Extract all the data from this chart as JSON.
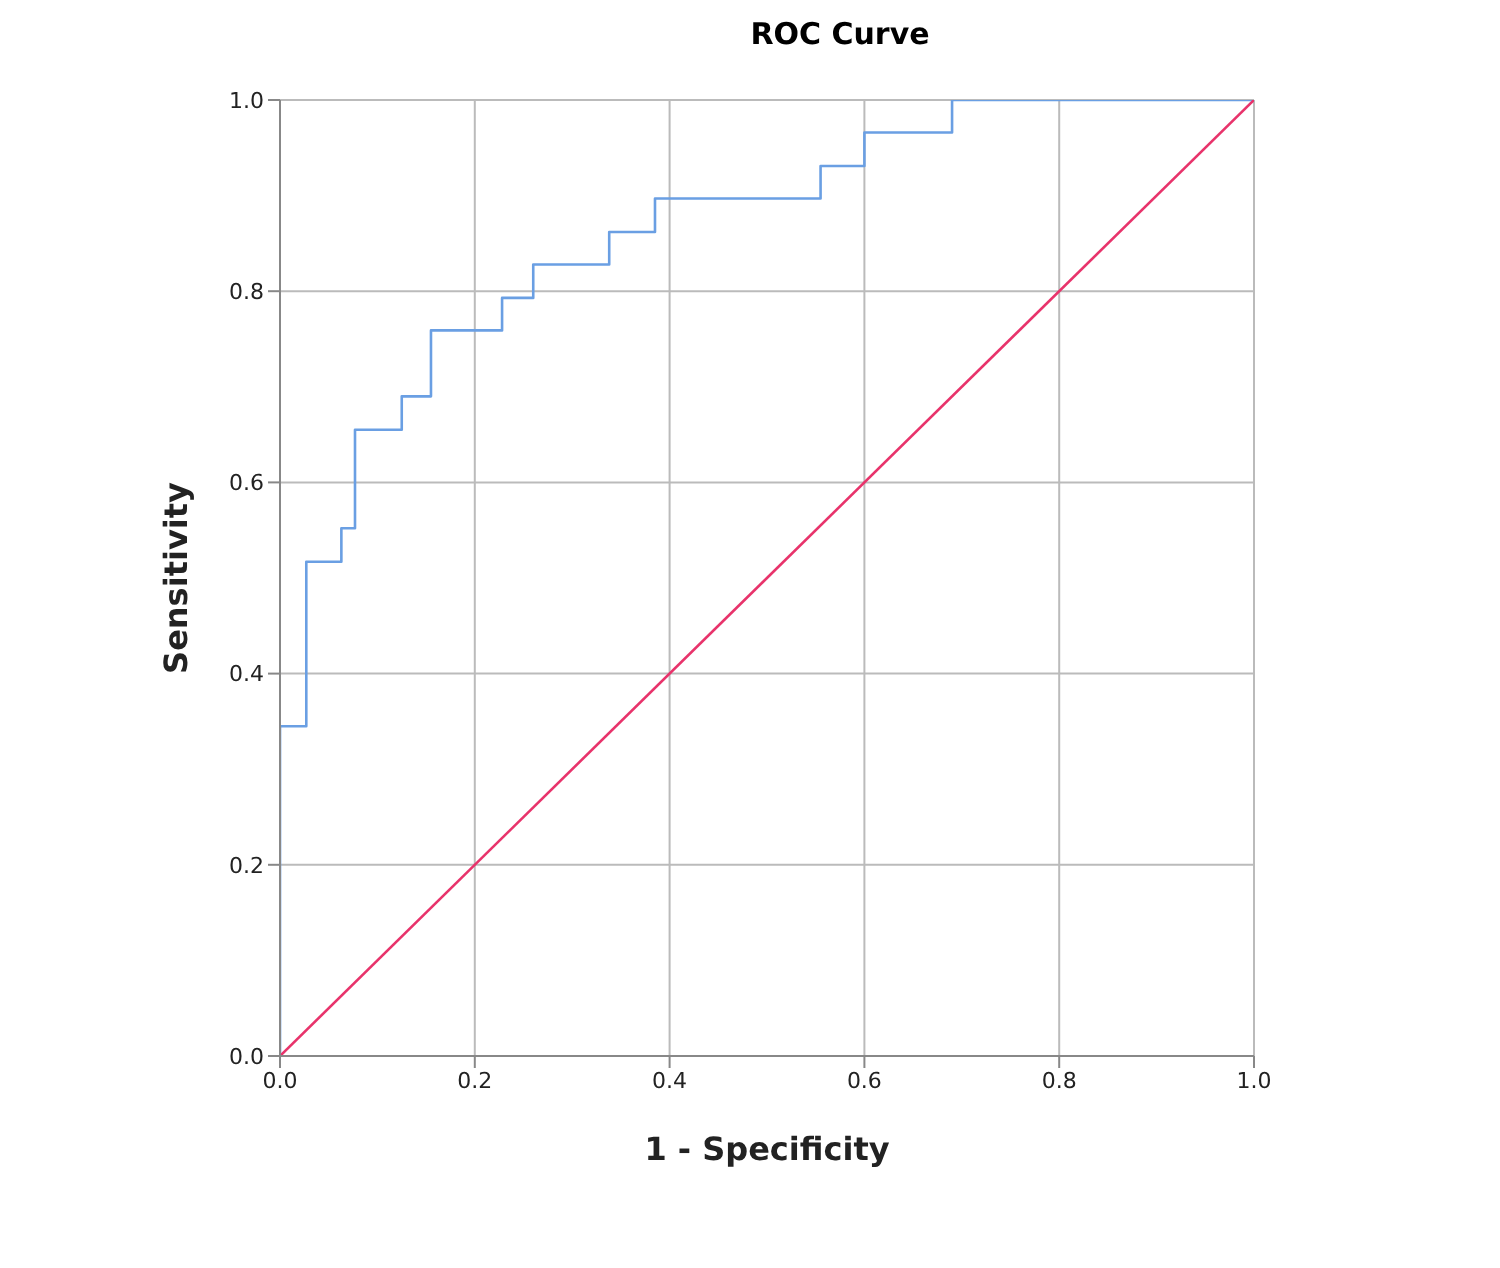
{
  "chart_data": {
    "type": "step",
    "title": "ROC Curve",
    "xlabel": "1 - Specificity",
    "ylabel": "Sensitivity",
    "xlim": [
      0,
      1
    ],
    "ylim": [
      0,
      1
    ],
    "xticks": [
      {
        "value": 0,
        "label": "0.0"
      },
      {
        "value": 0.2,
        "label": "0.2"
      },
      {
        "value": 0.4,
        "label": "0.4"
      },
      {
        "value": 0.6,
        "label": "0.6"
      },
      {
        "value": 0.8,
        "label": "0.8"
      },
      {
        "value": 1,
        "label": "1.0"
      }
    ],
    "yticks": [
      {
        "value": 0,
        "label": "0.0"
      },
      {
        "value": 0.2,
        "label": "0.2"
      },
      {
        "value": 0.4,
        "label": "0.4"
      },
      {
        "value": 0.6,
        "label": "0.6"
      },
      {
        "value": 0.8,
        "label": "0.8"
      },
      {
        "value": 1,
        "label": "1.0"
      }
    ],
    "grid": true,
    "marker": "none",
    "line_style": "solid",
    "series": [
      {
        "color": "#6a9fe3",
        "x": [
          0,
          0,
          0.027,
          0.063,
          0.077,
          0.125,
          0.155,
          0.228,
          0.26,
          0.338,
          0.385,
          0.555,
          0.6,
          0.69,
          1
        ],
        "values": [
          0,
          0.345,
          0.517,
          0.552,
          0.655,
          0.69,
          0.759,
          0.793,
          0.828,
          0.862,
          0.897,
          0.931,
          0.966,
          1,
          1
        ]
      },
      {
        "type": "line",
        "color": "#e8336b",
        "x": [
          0,
          1
        ],
        "values": [
          0,
          1
        ]
      }
    ]
  }
}
